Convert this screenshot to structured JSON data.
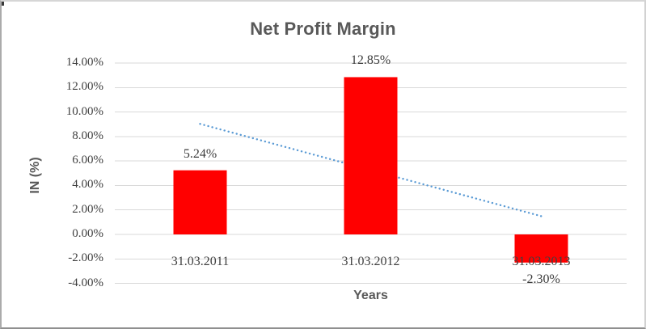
{
  "chart_data": {
    "type": "bar",
    "title": "Net Profit Margin",
    "categories": [
      "31.03.2011",
      "31.03.2012",
      "31.03.2013"
    ],
    "values": [
      5.24,
      12.85,
      -2.3
    ],
    "data_labels": [
      "5.24%",
      "12.85%",
      "-2.30%"
    ],
    "xlabel": "Years",
    "ylabel": "IN (%)",
    "ylim": [
      -4,
      14
    ],
    "ytick_step": 2,
    "ytick_labels": [
      "14.00%",
      "12.00%",
      "10.00%",
      "8.00%",
      "6.00%",
      "4.00%",
      "2.00%",
      "0.00%",
      "-2.00%",
      "-4.00%"
    ],
    "grid": true,
    "legend": false,
    "bar_color": "#ff0000",
    "gridline_color": "#d9d9d9",
    "tick_label_color": "#404040",
    "title_color": "#595959",
    "trendline": {
      "kind": "linear",
      "line_style": "dotted",
      "color": "#5b9bd5",
      "start_value": 9.03,
      "end_value": 1.49
    }
  }
}
